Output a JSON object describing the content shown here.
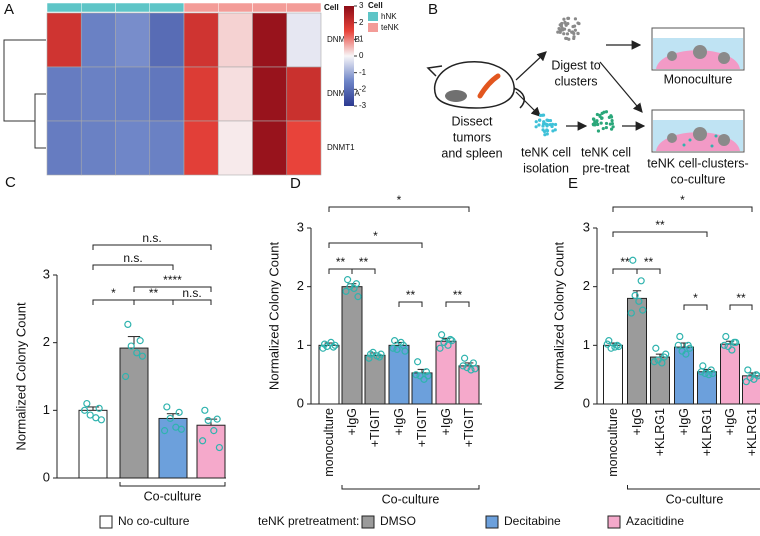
{
  "panel_labels": [
    "A",
    "B",
    "C",
    "D",
    "E"
  ],
  "chart_data": [
    {
      "type": "heatmap",
      "rows": [
        "DNMT3B",
        "DNMT3A",
        "DNMT1"
      ],
      "values": [
        [
          1.9,
          -1.6,
          -1.4,
          -2.0,
          1.9,
          0.3,
          2.8,
          -0.2
        ],
        [
          -1.7,
          -1.6,
          -1.6,
          -1.8,
          1.7,
          0.2,
          2.8,
          2.0
        ],
        [
          -1.7,
          -1.6,
          -1.5,
          -1.6,
          1.6,
          0.1,
          2.8,
          1.5
        ]
      ],
      "column_colors": [
        "#5ec5c7",
        "#5ec5c7",
        "#5ec5c7",
        "#5ec5c7",
        "#f39c98",
        "#f39c98",
        "#f39c98",
        "#f39c98"
      ],
      "annotation_label": "Cell",
      "zlim": [
        -3,
        3
      ],
      "colorbar_ticks": [
        3,
        2,
        1,
        0,
        -1,
        -2,
        -3
      ],
      "colors": [
        "#2b3990",
        "#6f86c8",
        "#f8f6f8",
        "#e8433a",
        "#8c0c17"
      ],
      "legend_title": "Cell",
      "groups": [
        {
          "name": "hNK",
          "color": "#5ec5c7"
        },
        {
          "name": "teNK",
          "color": "#f39c98"
        }
      ]
    },
    {
      "type": "bar",
      "ylabel": "Normalized Colony Count",
      "categories": [
        null,
        null,
        null,
        null
      ],
      "values": [
        1.0,
        1.92,
        0.88,
        0.78
      ],
      "errors": [
        0.05,
        0.17,
        0.07,
        0.09
      ],
      "colors": [
        "#ffffff",
        "#9b9b9b",
        "#6ca0dc",
        "#f5a9cb"
      ],
      "points": [
        [
          1.1,
          1.03,
          0.93,
          0.89,
          1.0,
          0.86
        ],
        [
          2.27,
          2.03,
          1.95,
          1.85,
          1.5,
          1.8
        ],
        [
          1.05,
          0.97,
          0.88,
          0.75,
          0.7,
          0.72
        ],
        [
          1.0,
          0.87,
          0.85,
          0.7,
          0.55,
          0.45
        ]
      ],
      "point_color": "#2fb3ae",
      "ylim": [
        0,
        3
      ],
      "yticks": [
        0,
        1,
        2,
        3
      ],
      "brackets": [
        {
          "from": 0,
          "to": 3,
          "label": "n.s."
        },
        {
          "from": 0,
          "to": 2,
          "label": "n.s."
        },
        {
          "from": 1,
          "to": 3,
          "label": "****"
        },
        {
          "from": 0,
          "to": 1,
          "label": "*"
        },
        {
          "from": 1,
          "to": 2,
          "label": "**"
        },
        {
          "from": 2,
          "to": 3,
          "label": "n.s."
        }
      ],
      "group_label": "Co-culture",
      "group_range": [
        1,
        3
      ]
    },
    {
      "type": "bar",
      "ylabel": "Normalized Colony Count",
      "categories": [
        "monoculture",
        "+IgG",
        "+TIGIT",
        "+IgG",
        "+TIGIT",
        "+IgG",
        "+TIGIT"
      ],
      "values": [
        1.0,
        2.0,
        0.83,
        1.0,
        0.53,
        1.07,
        0.65
      ],
      "errors": [
        0.04,
        0.05,
        0.04,
        0.05,
        0.06,
        0.05,
        0.05
      ],
      "colors": [
        "#ffffff",
        "#9b9b9b",
        "#9b9b9b",
        "#6ca0dc",
        "#6ca0dc",
        "#f5a9cb",
        "#f5a9cb"
      ],
      "points": [
        [
          1.02,
          0.97,
          0.98,
          1.05,
          0.95,
          1.0
        ],
        [
          2.12,
          2.05,
          2.0,
          1.97,
          1.92,
          1.83
        ],
        [
          0.85,
          0.8,
          0.88,
          0.82,
          0.78,
          0.85
        ],
        [
          1.08,
          1.0,
          0.93,
          1.05,
          0.95,
          0.9
        ],
        [
          0.72,
          0.55,
          0.48,
          0.42,
          0.5,
          0.48
        ],
        [
          1.18,
          1.1,
          1.05,
          1.0,
          0.95,
          1.08
        ],
        [
          0.78,
          0.7,
          0.62,
          0.58,
          0.65,
          0.6
        ]
      ],
      "point_color": "#2fb3ae",
      "ylim": [
        0,
        3
      ],
      "yticks": [
        0,
        1,
        2,
        3
      ],
      "brackets": [
        {
          "from": 0,
          "to": 6,
          "label": "*"
        },
        {
          "from": 0,
          "to": 4,
          "label": "*"
        },
        {
          "from": 0,
          "to": 1,
          "label": "**"
        },
        {
          "from": 1,
          "to": 2,
          "label": "**"
        },
        {
          "from": 3,
          "to": 4,
          "label": "**"
        },
        {
          "from": 5,
          "to": 6,
          "label": "**"
        }
      ],
      "group_label": "Co-culture",
      "group_range": [
        1,
        6
      ]
    },
    {
      "type": "bar",
      "ylabel": "Normalized Colony Count",
      "categories": [
        "monoculture",
        "+IgG",
        "+KLRG1",
        "+IgG",
        "+KLRG1",
        "+IgG",
        "+KLRG1"
      ],
      "values": [
        1.0,
        1.8,
        0.8,
        0.97,
        0.55,
        1.02,
        0.48
      ],
      "errors": [
        0.04,
        0.13,
        0.05,
        0.07,
        0.04,
        0.05,
        0.05
      ],
      "colors": [
        "#ffffff",
        "#9b9b9b",
        "#9b9b9b",
        "#6ca0dc",
        "#6ca0dc",
        "#f5a9cb",
        "#f5a9cb"
      ],
      "points": [
        [
          1.08,
          1.0,
          0.95,
          0.97,
          1.02,
          0.98
        ],
        [
          2.45,
          2.1,
          1.85,
          1.75,
          1.55,
          1.6
        ],
        [
          0.95,
          0.8,
          0.75,
          0.7,
          0.72,
          0.85
        ],
        [
          1.15,
          1.0,
          0.9,
          0.85,
          1.0,
          0.95
        ],
        [
          0.65,
          0.58,
          0.52,
          0.5,
          0.55,
          0.52
        ],
        [
          1.15,
          1.05,
          0.98,
          0.92,
          1.0,
          1.05
        ],
        [
          0.58,
          0.5,
          0.45,
          0.42,
          0.38,
          0.48
        ]
      ],
      "point_color": "#2fb3ae",
      "ylim": [
        0,
        3
      ],
      "yticks": [
        0,
        1,
        2,
        3
      ],
      "brackets": [
        {
          "from": 0,
          "to": 6,
          "label": "*"
        },
        {
          "from": 0,
          "to": 4,
          "label": "**"
        },
        {
          "from": 0,
          "to": 1,
          "label": "**"
        },
        {
          "from": 1,
          "to": 2,
          "label": "**"
        },
        {
          "from": 3,
          "to": 4,
          "label": "*"
        },
        {
          "from": 5,
          "to": 6,
          "label": "**"
        }
      ],
      "group_label": "Co-culture",
      "group_range": [
        1,
        6
      ]
    }
  ],
  "diagram": {
    "dissect": [
      "Dissect",
      "tumors",
      "and spleen"
    ],
    "digest": [
      "Digest to",
      "clusters"
    ],
    "isolation": [
      "teNK cell",
      "isolation"
    ],
    "pretreat": [
      "teNK cell",
      "pre-treat"
    ],
    "monoculture": "Monoculture",
    "coculture": [
      "teNK cell-clusters-",
      "co-culture"
    ]
  },
  "legend": {
    "no_coculture": {
      "label": "No co-culture",
      "color": "#ffffff"
    },
    "pretreatment_title": "teNK pretreatment:",
    "items": [
      {
        "label": "DMSO",
        "color": "#9b9b9b"
      },
      {
        "label": "Decitabine",
        "color": "#6ca0dc"
      },
      {
        "label": "Azacitidine",
        "color": "#f5a9cb"
      }
    ]
  }
}
